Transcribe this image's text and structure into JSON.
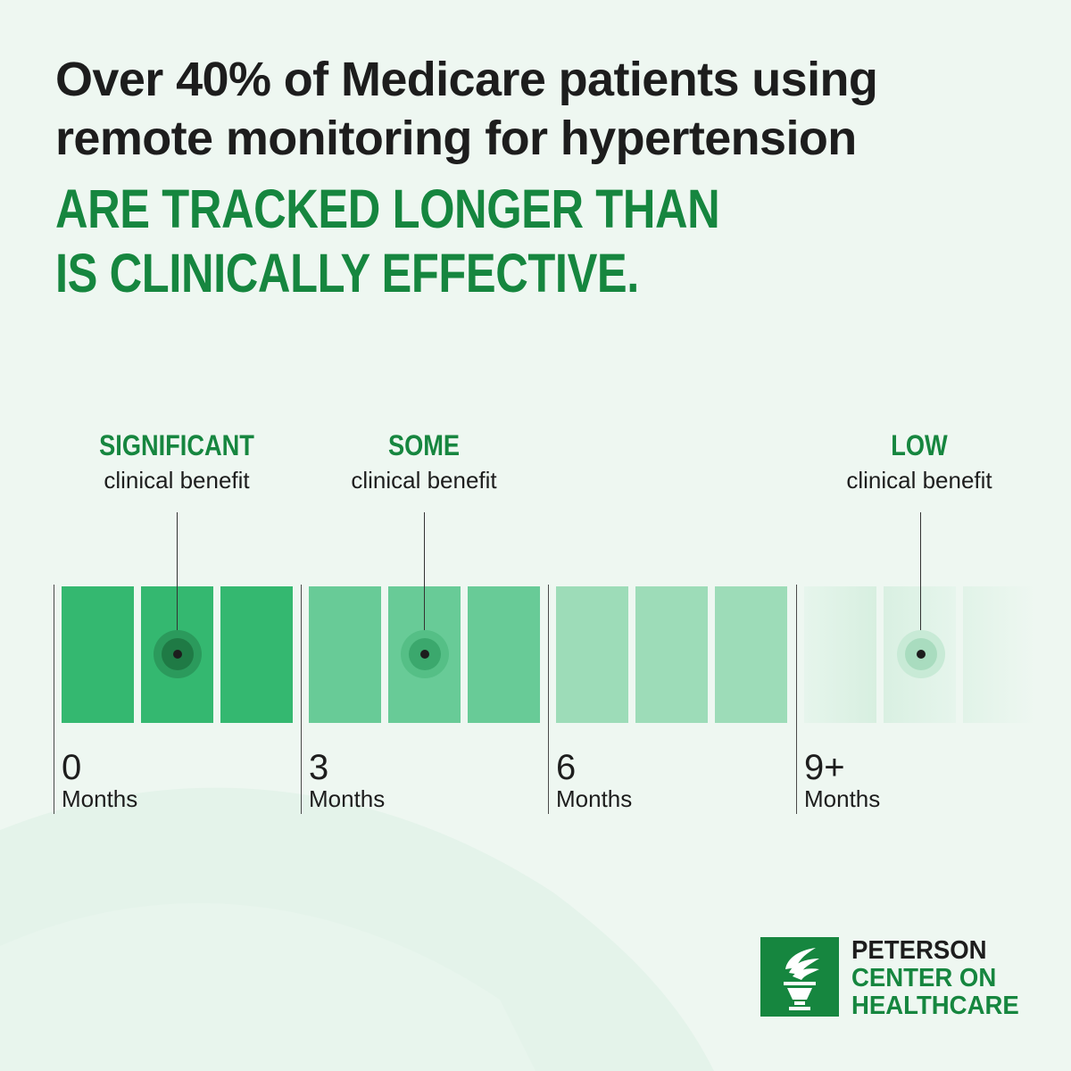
{
  "headline": {
    "line1": "Over 40% of Medicare patients using",
    "line2": "remote monitoring for hypertension"
  },
  "emphasis": {
    "line1": "ARE TRACKED LONGER THAN",
    "line2": "IS CLINICALLY EFFECTIVE."
  },
  "benefits": [
    {
      "level": "SIGNIFICANT",
      "text": "clinical benefit"
    },
    {
      "level": "SOME",
      "text": "clinical benefit"
    },
    {
      "level": "LOW",
      "text": "clinical benefit"
    }
  ],
  "timeline": [
    {
      "value": "0",
      "unit": "Months"
    },
    {
      "value": "3",
      "unit": "Months"
    },
    {
      "value": "6",
      "unit": "Months"
    },
    {
      "value": "9+",
      "unit": "Months"
    }
  ],
  "logo": {
    "line1": "PETERSON",
    "line2": "CENTER ON",
    "line3": "HEALTHCARE",
    "icon": "torch-icon"
  },
  "colors": {
    "background": "#eef7f1",
    "brand_green": "#16863f",
    "significant": "#34b870",
    "some": "#68cb97",
    "moderate": "#9ddcb8",
    "low": "#dcf1e4"
  }
}
